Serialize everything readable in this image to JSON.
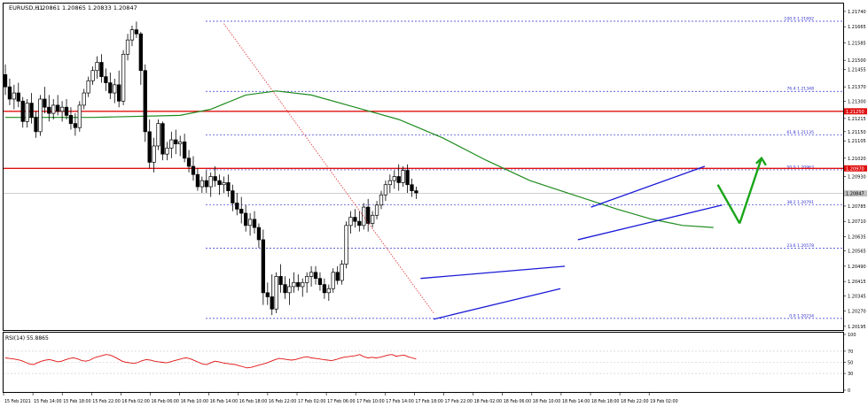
{
  "main_header": {
    "symbol": "EURUSD,H1",
    "ohlc": "1.20861 1.20865 1.20833 1.20847"
  },
  "rsi_header": "RSI(14) 55.8865",
  "colors": {
    "background": "#ffffff",
    "frame": "#000000",
    "candle": "#000000",
    "ma": "#1e8c1e",
    "resistance": "#e01010",
    "fib": "#3030d0",
    "channel": "#1a1ad6",
    "dotted_trend": "#e03030",
    "arrow": "#1aa51a",
    "rsi": "#e01010",
    "price_box": "#e01010"
  },
  "chart_data": [
    {
      "type": "candlestick",
      "title": "EURUSD,H1",
      "ylim": [
        1.2019,
        1.2177
      ],
      "y_ticks": [
        "1.21740",
        "1.21665",
        "1.21585",
        "1.21500",
        "1.21455",
        "1.21370",
        "1.21300",
        "1.21215",
        "1.21150",
        "1.21105",
        "1.21020",
        "1.20930",
        "1.20850",
        "1.20785",
        "1.20710",
        "1.20635",
        "1.20565",
        "1.20490",
        "1.20415",
        "1.20345",
        "1.20270",
        "1.20195"
      ],
      "x_ticks": [
        "15 Feb 2021",
        "15 Feb 14:00",
        "15 Feb 18:00",
        "15 Feb 22:00",
        "16 Feb 02:00",
        "16 Feb 06:00",
        "16 Feb 10:00",
        "16 Feb 14:00",
        "16 Feb 18:00",
        "16 Feb 22:00",
        "17 Feb 02:00",
        "17 Feb 06:00",
        "17 Feb 10:00",
        "17 Feb 14:00",
        "17 Feb 18:00",
        "17 Feb 22:00",
        "18 Feb 02:00",
        "18 Feb 06:00",
        "18 Feb 10:00",
        "18 Feb 14:00",
        "18 Feb 18:00",
        "18 Feb 22:00",
        "19 Feb 02:00"
      ],
      "current_price": "1.20847",
      "resistance_levels": [
        {
          "price": 1.2125,
          "label": "1.21250"
        },
        {
          "price": 1.2097,
          "label": "1.20970"
        }
      ],
      "fibonacci": [
        {
          "ratio": "100.0",
          "price": 1.21692,
          "label": "100.0 1.21692"
        },
        {
          "ratio": "76.4",
          "price": 1.21348,
          "label": "76.4 1.21348"
        },
        {
          "ratio": "61.8",
          "price": 1.21135,
          "label": "61.8 1.21135"
        },
        {
          "ratio": "50.0",
          "price": 1.20963,
          "label": "50.0 1.20963"
        },
        {
          "ratio": "38.2",
          "price": 1.20791,
          "label": "38.2 1.20791"
        },
        {
          "ratio": "23.6",
          "price": 1.20578,
          "label": "23.6 1.20578"
        },
        {
          "ratio": "0.0",
          "price": 1.20234,
          "label": "0.0 1.20234"
        }
      ],
      "candles": [
        [
          1.2143,
          1.2148,
          1.2133,
          1.2137
        ],
        [
          1.2137,
          1.2141,
          1.2128,
          1.2131
        ],
        [
          1.2131,
          1.2138,
          1.2126,
          1.2134
        ],
        [
          1.2134,
          1.2139,
          1.2127,
          1.213
        ],
        [
          1.213,
          1.2132,
          1.2117,
          1.212
        ],
        [
          1.212,
          1.2131,
          1.2117,
          1.2129
        ],
        [
          1.2129,
          1.2134,
          1.2119,
          1.2122
        ],
        [
          1.2122,
          1.2125,
          1.2112,
          1.2115
        ],
        [
          1.2115,
          1.2133,
          1.2113,
          1.2131
        ],
        [
          1.2131,
          1.2137,
          1.2124,
          1.2127
        ],
        [
          1.2127,
          1.2133,
          1.212,
          1.2124
        ],
        [
          1.2124,
          1.2131,
          1.2121,
          1.2128
        ],
        [
          1.2128,
          1.2133,
          1.2123,
          1.2125
        ],
        [
          1.2125,
          1.213,
          1.212,
          1.2127
        ],
        [
          1.2127,
          1.2131,
          1.2121,
          1.2123
        ],
        [
          1.2123,
          1.2127,
          1.2116,
          1.2119
        ],
        [
          1.2119,
          1.2124,
          1.2113,
          1.2117
        ],
        [
          1.2117,
          1.213,
          1.2115,
          1.2128
        ],
        [
          1.2128,
          1.2136,
          1.2126,
          1.2134
        ],
        [
          1.2134,
          1.2142,
          1.2132,
          1.214
        ],
        [
          1.214,
          1.2147,
          1.2138,
          1.2145
        ],
        [
          1.2145,
          1.2152,
          1.2141,
          1.2149
        ],
        [
          1.2149,
          1.2153,
          1.2139,
          1.2142
        ],
        [
          1.2142,
          1.2146,
          1.2135,
          1.2139
        ],
        [
          1.2139,
          1.2144,
          1.2131,
          1.2134
        ],
        [
          1.2134,
          1.2141,
          1.2129,
          1.2138
        ],
        [
          1.2138,
          1.2145,
          1.2127,
          1.213
        ],
        [
          1.213,
          1.2155,
          1.2128,
          1.2153
        ],
        [
          1.2153,
          1.2163,
          1.215,
          1.216
        ],
        [
          1.216,
          1.2167,
          1.2157,
          1.2165
        ],
        [
          1.2165,
          1.2169,
          1.2161,
          1.2163
        ],
        [
          1.2163,
          1.2164,
          1.2138,
          1.2145
        ],
        [
          1.2145,
          1.2148,
          1.211,
          1.2115
        ],
        [
          1.2115,
          1.2121,
          1.2097,
          1.21
        ],
        [
          1.21,
          1.2112,
          1.2095,
          1.2108
        ],
        [
          1.2108,
          1.2121,
          1.2106,
          1.2119
        ],
        [
          1.2119,
          1.212,
          1.2101,
          1.2104
        ],
        [
          1.2104,
          1.211,
          1.2101,
          1.2107
        ],
        [
          1.2107,
          1.2115,
          1.2102,
          1.2111
        ],
        [
          1.2111,
          1.2116,
          1.2104,
          1.2109
        ],
        [
          1.2109,
          1.2113,
          1.2103,
          1.211
        ],
        [
          1.211,
          1.2114,
          1.21,
          1.2102
        ],
        [
          1.2102,
          1.2106,
          1.2095,
          1.2098
        ],
        [
          1.2098,
          1.2103,
          1.2091,
          1.2094
        ],
        [
          1.2094,
          1.2097,
          1.2086,
          1.2088
        ],
        [
          1.2088,
          1.2093,
          1.2085,
          1.2091
        ],
        [
          1.2091,
          1.2096,
          1.2085,
          1.2088
        ],
        [
          1.2088,
          1.2095,
          1.2083,
          1.2093
        ],
        [
          1.2093,
          1.2098,
          1.2088,
          1.2091
        ],
        [
          1.2091,
          1.2094,
          1.2084,
          1.2089
        ],
        [
          1.2089,
          1.2093,
          1.2085,
          1.209
        ],
        [
          1.209,
          1.2094,
          1.2083,
          1.2086
        ],
        [
          1.2086,
          1.2089,
          1.2076,
          1.208
        ],
        [
          1.208,
          1.2085,
          1.2074,
          1.2077
        ],
        [
          1.2077,
          1.2083,
          1.207,
          1.2075
        ],
        [
          1.2075,
          1.2079,
          1.2066,
          1.2069
        ],
        [
          1.2069,
          1.2075,
          1.2064,
          1.2072
        ],
        [
          1.2072,
          1.2076,
          1.2065,
          1.2068
        ],
        [
          1.2068,
          1.207,
          1.2058,
          1.2062
        ],
        [
          1.2062,
          1.2067,
          1.203,
          1.2036
        ],
        [
          1.2036,
          1.2041,
          1.203,
          1.2034
        ],
        [
          1.2034,
          1.2045,
          1.2025,
          1.2028
        ],
        [
          1.2028,
          1.2046,
          1.2026,
          1.2044
        ],
        [
          1.2044,
          1.205,
          1.2036,
          1.204
        ],
        [
          1.204,
          1.2044,
          1.2033,
          1.2036
        ],
        [
          1.2036,
          1.2043,
          1.203,
          1.2039
        ],
        [
          1.2039,
          1.2046,
          1.2036,
          1.2041
        ],
        [
          1.2041,
          1.2045,
          1.2037,
          1.2039
        ],
        [
          1.2039,
          1.2043,
          1.2034,
          1.2041
        ],
        [
          1.2041,
          1.2046,
          1.2036,
          1.2044
        ],
        [
          1.2044,
          1.2049,
          1.2039,
          1.2046
        ],
        [
          1.2046,
          1.2049,
          1.204,
          1.2043
        ],
        [
          1.2043,
          1.2046,
          1.2037,
          1.204
        ],
        [
          1.204,
          1.2043,
          1.2033,
          1.2036
        ],
        [
          1.2036,
          1.204,
          1.2032,
          1.2038
        ],
        [
          1.2038,
          1.2048,
          1.2036,
          1.2046
        ],
        [
          1.2046,
          1.2049,
          1.204,
          1.2042
        ],
        [
          1.2042,
          1.2052,
          1.204,
          1.205
        ],
        [
          1.205,
          1.2071,
          1.2048,
          1.2069
        ],
        [
          1.2069,
          1.2076,
          1.2065,
          1.2073
        ],
        [
          1.2073,
          1.2077,
          1.2068,
          1.2071
        ],
        [
          1.2071,
          1.2076,
          1.2066,
          1.2069
        ],
        [
          1.2069,
          1.208,
          1.2067,
          1.2078
        ],
        [
          1.2078,
          1.2082,
          1.2066,
          1.207
        ],
        [
          1.207,
          1.2076,
          1.2068,
          1.2074
        ],
        [
          1.2074,
          1.2081,
          1.2072,
          1.2079
        ],
        [
          1.2079,
          1.2086,
          1.2077,
          1.2084
        ],
        [
          1.2084,
          1.2091,
          1.2081,
          1.2089
        ],
        [
          1.2089,
          1.2094,
          1.2085,
          1.2091
        ],
        [
          1.2091,
          1.2096,
          1.2087,
          1.2093
        ],
        [
          1.2093,
          1.2099,
          1.2086,
          1.209
        ],
        [
          1.209,
          1.2098,
          1.2088,
          1.2096
        ],
        [
          1.2096,
          1.2099,
          1.2085,
          1.2089
        ],
        [
          1.2089,
          1.2092,
          1.2083,
          1.2086
        ],
        [
          1.2086,
          1.2088,
          1.2082,
          1.2085
        ]
      ],
      "moving_average": [
        [
          0,
          1.2122
        ],
        [
          20,
          1.2122
        ],
        [
          40,
          1.2123
        ],
        [
          47,
          1.2126
        ],
        [
          55,
          1.2133
        ],
        [
          62,
          1.2135
        ],
        [
          70,
          1.2133
        ],
        [
          80,
          1.2127
        ],
        [
          90,
          1.2121
        ],
        [
          100,
          1.2112
        ],
        [
          110,
          1.2101
        ],
        [
          120,
          1.2091
        ],
        [
          130,
          1.2084
        ],
        [
          140,
          1.2077
        ],
        [
          148,
          1.2072
        ],
        [
          155,
          1.2069
        ],
        [
          162,
          1.2068
        ]
      ],
      "annotations": {
        "dotted_trend": [
          [
            50,
            1.2168
          ],
          [
            98,
            1.2026
          ]
        ],
        "channel_low_upper": [
          [
            95,
            1.2043
          ],
          [
            128,
            1.2049
          ]
        ],
        "channel_low_lower": [
          [
            98,
            1.2023
          ],
          [
            127,
            1.2038
          ]
        ],
        "channel_high_upper": [
          [
            134,
            1.2078
          ],
          [
            160,
            1.2098
          ]
        ],
        "channel_high_lower": [
          [
            131,
            1.2062
          ],
          [
            164,
            1.2079
          ]
        ],
        "arrow_down": [
          [
            163,
            1.2089
          ],
          [
            168,
            1.207
          ]
        ],
        "arrow_up": [
          [
            168,
            1.207
          ],
          [
            173,
            1.2102
          ]
        ]
      }
    },
    {
      "type": "line",
      "title": "RSI(14) 55.8865",
      "ylim": [
        0,
        100
      ],
      "y_ticks": [
        "100",
        "70",
        "50",
        "30",
        "0"
      ],
      "values": [
        58,
        57,
        56,
        55,
        53,
        50,
        47,
        46,
        49,
        52,
        54,
        55,
        53,
        51,
        52,
        55,
        57,
        58,
        56,
        53,
        52,
        54,
        58,
        60,
        62,
        64,
        63,
        60,
        56,
        52,
        50,
        49,
        48,
        50,
        53,
        55,
        54,
        52,
        51,
        50,
        49,
        51,
        53,
        55,
        57,
        58,
        56,
        53,
        50,
        47,
        46,
        49,
        52,
        51,
        49,
        48,
        47,
        46,
        44,
        42,
        40,
        41,
        43,
        45,
        47,
        49,
        52,
        55,
        57,
        56,
        55,
        54,
        55,
        57,
        59,
        60,
        58,
        57,
        56,
        55,
        54,
        53,
        55,
        57,
        59,
        60,
        61,
        62,
        64,
        60,
        58,
        59,
        58,
        59,
        61,
        63,
        64,
        61,
        62,
        63,
        60,
        58,
        56
      ]
    }
  ]
}
